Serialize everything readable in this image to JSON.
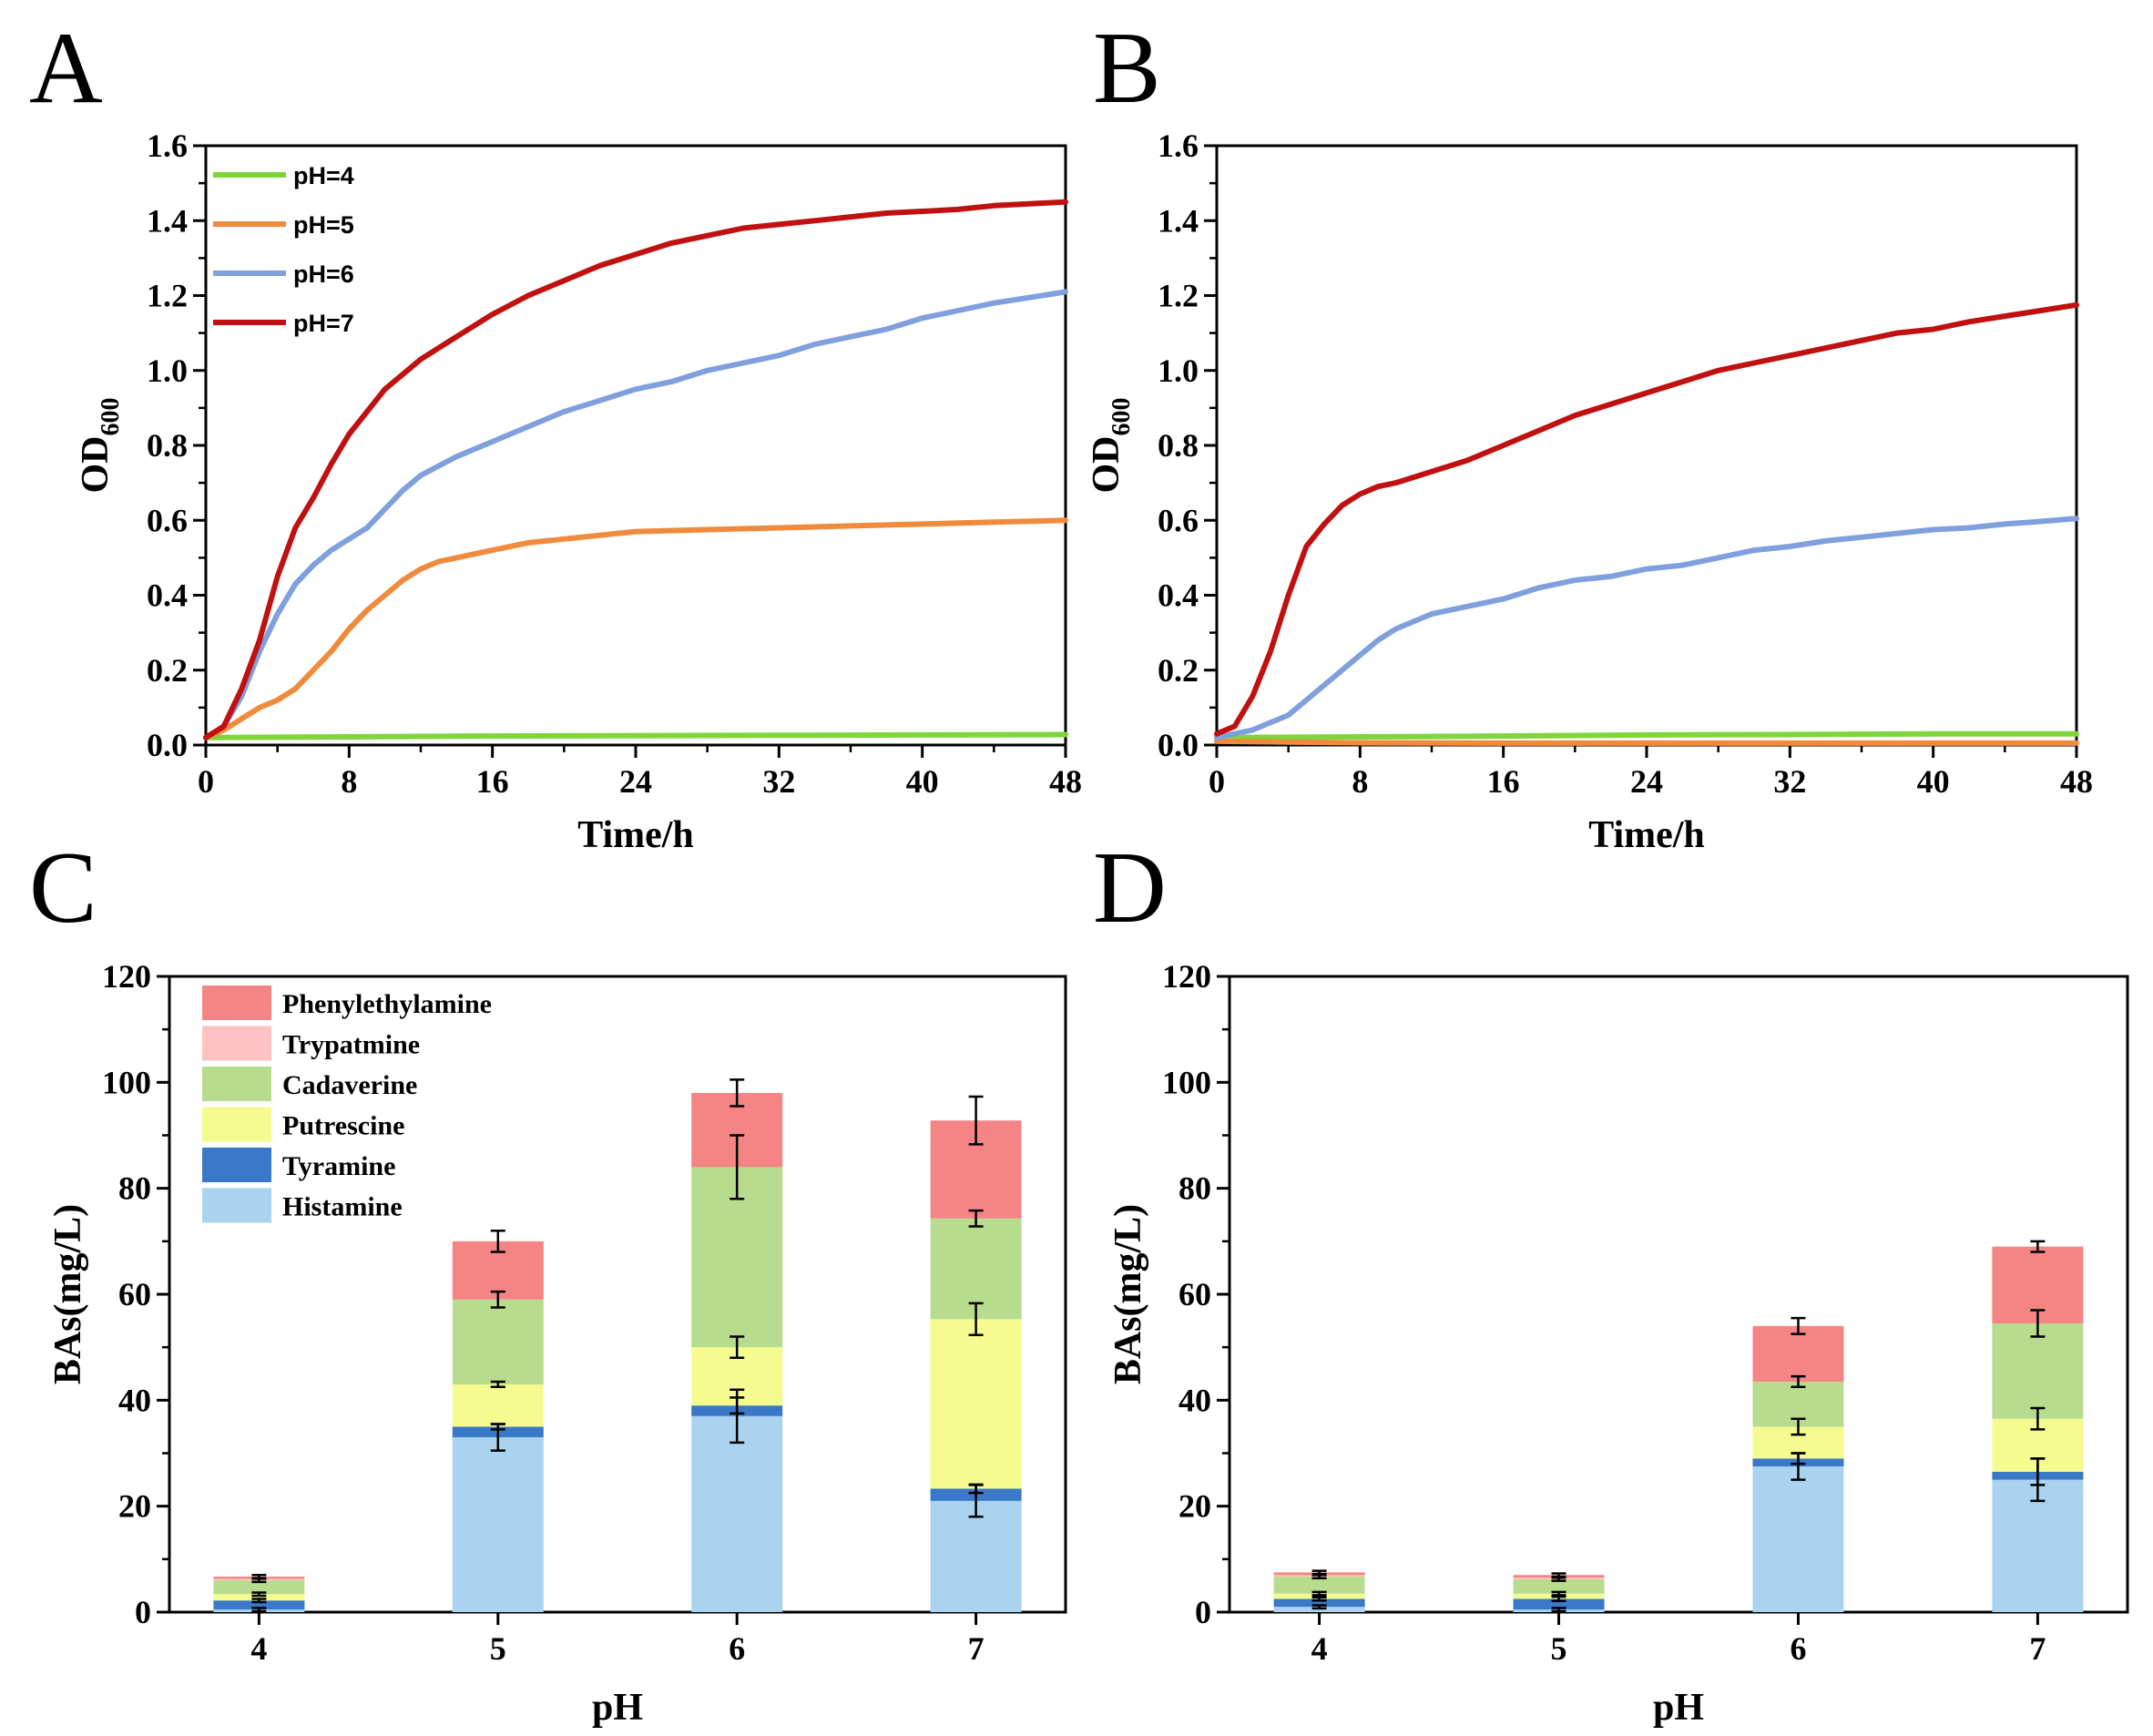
{
  "panels": {
    "A": "A",
    "B": "B",
    "C": "C",
    "D": "D"
  },
  "colors": {
    "pH4": "#7fd63c",
    "pH5": "#f08a3c",
    "pH6": "#7f9fdd",
    "pH7": "#c01010",
    "Phenylethylamine": "#f58585",
    "Trypatmine": "#ffc2c2",
    "Cadaverine": "#b8dc8e",
    "Putrescine": "#f5fb8f",
    "Tyramine": "#3a78c8",
    "Histamine": "#a9d3ee"
  },
  "chart_data": [
    {
      "panel": "A",
      "type": "line",
      "xlabel": "Time/h",
      "ylabel": "OD",
      "ylabel_sub": "600",
      "xlim": [
        0,
        48
      ],
      "ylim": [
        0,
        1.6
      ],
      "xticks": [
        "0",
        "8",
        "16",
        "24",
        "32",
        "40",
        "48"
      ],
      "yticks": [
        "0.0",
        "0.2",
        "0.4",
        "0.6",
        "0.8",
        "1.0",
        "1.2",
        "1.4",
        "1.6"
      ],
      "legend": [
        "pH=4",
        "pH=5",
        "pH=6",
        "pH=7"
      ],
      "series": [
        {
          "name": "pH=4",
          "color": "#7fd63c",
          "points": [
            [
              0,
              0.02
            ],
            [
              8,
              0.022
            ],
            [
              16,
              0.024
            ],
            [
              24,
              0.025
            ],
            [
              32,
              0.026
            ],
            [
              40,
              0.027
            ],
            [
              48,
              0.028
            ]
          ]
        },
        {
          "name": "pH=5",
          "color": "#f08a3c",
          "points": [
            [
              0,
              0.02
            ],
            [
              1,
              0.04
            ],
            [
              2,
              0.07
            ],
            [
              3,
              0.1
            ],
            [
              4,
              0.12
            ],
            [
              5,
              0.15
            ],
            [
              6,
              0.2
            ],
            [
              7,
              0.25
            ],
            [
              8,
              0.31
            ],
            [
              9,
              0.36
            ],
            [
              10,
              0.4
            ],
            [
              11,
              0.44
            ],
            [
              12,
              0.47
            ],
            [
              13,
              0.49
            ],
            [
              14,
              0.5
            ],
            [
              16,
              0.52
            ],
            [
              18,
              0.54
            ],
            [
              20,
              0.55
            ],
            [
              22,
              0.56
            ],
            [
              24,
              0.57
            ],
            [
              28,
              0.575
            ],
            [
              32,
              0.58
            ],
            [
              36,
              0.585
            ],
            [
              40,
              0.59
            ],
            [
              44,
              0.595
            ],
            [
              48,
              0.6
            ]
          ]
        },
        {
          "name": "pH=6",
          "color": "#7f9fdd",
          "points": [
            [
              0,
              0.02
            ],
            [
              1,
              0.05
            ],
            [
              2,
              0.13
            ],
            [
              3,
              0.25
            ],
            [
              4,
              0.35
            ],
            [
              5,
              0.43
            ],
            [
              6,
              0.48
            ],
            [
              7,
              0.52
            ],
            [
              8,
              0.55
            ],
            [
              9,
              0.58
            ],
            [
              10,
              0.63
            ],
            [
              11,
              0.68
            ],
            [
              12,
              0.72
            ],
            [
              14,
              0.77
            ],
            [
              16,
              0.81
            ],
            [
              18,
              0.85
            ],
            [
              20,
              0.89
            ],
            [
              22,
              0.92
            ],
            [
              24,
              0.95
            ],
            [
              26,
              0.97
            ],
            [
              28,
              1.0
            ],
            [
              30,
              1.02
            ],
            [
              32,
              1.04
            ],
            [
              34,
              1.07
            ],
            [
              36,
              1.09
            ],
            [
              38,
              1.11
            ],
            [
              40,
              1.14
            ],
            [
              42,
              1.16
            ],
            [
              44,
              1.18
            ],
            [
              46,
              1.195
            ],
            [
              48,
              1.21
            ]
          ]
        },
        {
          "name": "pH=7",
          "color": "#c01010",
          "points": [
            [
              0,
              0.02
            ],
            [
              1,
              0.05
            ],
            [
              2,
              0.15
            ],
            [
              3,
              0.28
            ],
            [
              4,
              0.45
            ],
            [
              5,
              0.58
            ],
            [
              6,
              0.66
            ],
            [
              7,
              0.75
            ],
            [
              8,
              0.83
            ],
            [
              9,
              0.89
            ],
            [
              10,
              0.95
            ],
            [
              11,
              0.99
            ],
            [
              12,
              1.03
            ],
            [
              14,
              1.09
            ],
            [
              16,
              1.15
            ],
            [
              18,
              1.2
            ],
            [
              20,
              1.24
            ],
            [
              22,
              1.28
            ],
            [
              24,
              1.31
            ],
            [
              26,
              1.34
            ],
            [
              28,
              1.36
            ],
            [
              30,
              1.38
            ],
            [
              32,
              1.39
            ],
            [
              34,
              1.4
            ],
            [
              36,
              1.41
            ],
            [
              38,
              1.42
            ],
            [
              40,
              1.425
            ],
            [
              42,
              1.43
            ],
            [
              44,
              1.44
            ],
            [
              46,
              1.445
            ],
            [
              48,
              1.45
            ]
          ]
        }
      ]
    },
    {
      "panel": "B",
      "type": "line",
      "xlabel": "Time/h",
      "ylabel": "OD",
      "ylabel_sub": "600",
      "xlim": [
        0,
        48
      ],
      "ylim": [
        0,
        1.6
      ],
      "xticks": [
        "0",
        "8",
        "16",
        "24",
        "32",
        "40",
        "48"
      ],
      "yticks": [
        "0.0",
        "0.2",
        "0.4",
        "0.6",
        "0.8",
        "1.0",
        "1.2",
        "1.4",
        "1.6"
      ],
      "series": [
        {
          "name": "pH=4",
          "color": "#7fd63c",
          "points": [
            [
              0,
              0.02
            ],
            [
              8,
              0.022
            ],
            [
              16,
              0.024
            ],
            [
              24,
              0.027
            ],
            [
              32,
              0.028
            ],
            [
              40,
              0.03
            ],
            [
              48,
              0.03
            ]
          ]
        },
        {
          "name": "pH=5",
          "color": "#f08a3c",
          "points": [
            [
              0,
              0.01
            ],
            [
              4,
              0.008
            ],
            [
              8,
              0.006
            ],
            [
              16,
              0.005
            ],
            [
              24,
              0.005
            ],
            [
              32,
              0.005
            ],
            [
              40,
              0.005
            ],
            [
              48,
              0.005
            ]
          ]
        },
        {
          "name": "pH=6",
          "color": "#7f9fdd",
          "points": [
            [
              0,
              0.02
            ],
            [
              2,
              0.04
            ],
            [
              4,
              0.08
            ],
            [
              6,
              0.16
            ],
            [
              8,
              0.24
            ],
            [
              9,
              0.28
            ],
            [
              10,
              0.31
            ],
            [
              12,
              0.35
            ],
            [
              14,
              0.37
            ],
            [
              16,
              0.39
            ],
            [
              18,
              0.42
            ],
            [
              20,
              0.44
            ],
            [
              22,
              0.45
            ],
            [
              24,
              0.47
            ],
            [
              26,
              0.48
            ],
            [
              28,
              0.5
            ],
            [
              30,
              0.52
            ],
            [
              32,
              0.53
            ],
            [
              34,
              0.545
            ],
            [
              36,
              0.555
            ],
            [
              38,
              0.565
            ],
            [
              40,
              0.575
            ],
            [
              42,
              0.58
            ],
            [
              44,
              0.59
            ],
            [
              46,
              0.597
            ],
            [
              48,
              0.605
            ]
          ]
        },
        {
          "name": "pH=7",
          "color": "#c01010",
          "points": [
            [
              0,
              0.03
            ],
            [
              1,
              0.05
            ],
            [
              2,
              0.13
            ],
            [
              3,
              0.25
            ],
            [
              4,
              0.4
            ],
            [
              5,
              0.53
            ],
            [
              6,
              0.59
            ],
            [
              7,
              0.64
            ],
            [
              8,
              0.67
            ],
            [
              9,
              0.69
            ],
            [
              10,
              0.7
            ],
            [
              12,
              0.73
            ],
            [
              14,
              0.76
            ],
            [
              16,
              0.8
            ],
            [
              18,
              0.84
            ],
            [
              20,
              0.88
            ],
            [
              22,
              0.91
            ],
            [
              24,
              0.94
            ],
            [
              26,
              0.97
            ],
            [
              28,
              1.0
            ],
            [
              30,
              1.02
            ],
            [
              32,
              1.04
            ],
            [
              34,
              1.06
            ],
            [
              36,
              1.08
            ],
            [
              38,
              1.1
            ],
            [
              40,
              1.11
            ],
            [
              42,
              1.13
            ],
            [
              44,
              1.145
            ],
            [
              46,
              1.16
            ],
            [
              48,
              1.175
            ]
          ]
        }
      ]
    },
    {
      "panel": "C",
      "type": "bar",
      "stacked": true,
      "xlabel": "pH",
      "ylabel": "BAs(mg/L)",
      "ylim": [
        0,
        120
      ],
      "yticks": [
        "0",
        "20",
        "40",
        "60",
        "80",
        "100",
        "120"
      ],
      "categories": [
        "4",
        "5",
        "6",
        "7"
      ],
      "legend": [
        "Phenylethylamine",
        "Trypatmine",
        "Cadaverine",
        "Putrescine",
        "Tyramine",
        "Histamine"
      ],
      "series": [
        {
          "name": "Histamine",
          "values": [
            0.5,
            33,
            37,
            21
          ],
          "errors": [
            0.3,
            2.5,
            5,
            3
          ]
        },
        {
          "name": "Tyramine",
          "values": [
            1.7,
            2,
            2,
            2.3
          ],
          "errors": [
            0.3,
            0.5,
            1.5,
            0.8
          ]
        },
        {
          "name": "Putrescine",
          "values": [
            1.2,
            8,
            11,
            32
          ],
          "errors": [
            0.3,
            0.5,
            2,
            3
          ]
        },
        {
          "name": "Cadaverine",
          "values": [
            2.6,
            16,
            34,
            19
          ],
          "errors": [
            0.3,
            1.5,
            6,
            1.5
          ]
        },
        {
          "name": "Trypatmine",
          "values": [
            0.3,
            0,
            0,
            0
          ],
          "errors": [
            0,
            0,
            0,
            0
          ]
        },
        {
          "name": "Phenylethylamine",
          "values": [
            0.4,
            11,
            14,
            18.5
          ],
          "errors": [
            0.3,
            2,
            2.5,
            4.5
          ]
        }
      ]
    },
    {
      "panel": "D",
      "type": "bar",
      "stacked": true,
      "xlabel": "pH",
      "ylabel": "BAs(mg/L)",
      "ylim": [
        0,
        120
      ],
      "yticks": [
        "0",
        "20",
        "40",
        "60",
        "80",
        "100",
        "120"
      ],
      "categories": [
        "4",
        "5",
        "6",
        "7"
      ],
      "series": [
        {
          "name": "Histamine",
          "values": [
            1,
            0.5,
            27.5,
            25
          ],
          "errors": [
            0.3,
            0.3,
            2.5,
            4
          ]
        },
        {
          "name": "Tyramine",
          "values": [
            1.5,
            2,
            1.5,
            1.5
          ],
          "errors": [
            0.3,
            0.4,
            1,
            2.5
          ]
        },
        {
          "name": "Putrescine",
          "values": [
            1,
            1,
            6,
            10
          ],
          "errors": [
            0.3,
            0.3,
            1.5,
            2
          ]
        },
        {
          "name": "Cadaverine",
          "values": [
            3.2,
            2.7,
            8.5,
            18
          ],
          "errors": [
            0.3,
            0.3,
            1,
            2.5
          ]
        },
        {
          "name": "Trypatmine",
          "values": [
            0.3,
            0.3,
            0,
            0
          ],
          "errors": [
            0,
            0,
            0,
            0
          ]
        },
        {
          "name": "Phenylethylamine",
          "values": [
            0.5,
            0.5,
            10.5,
            14.5
          ],
          "errors": [
            0.3,
            0.3,
            1.5,
            1
          ]
        }
      ]
    }
  ]
}
